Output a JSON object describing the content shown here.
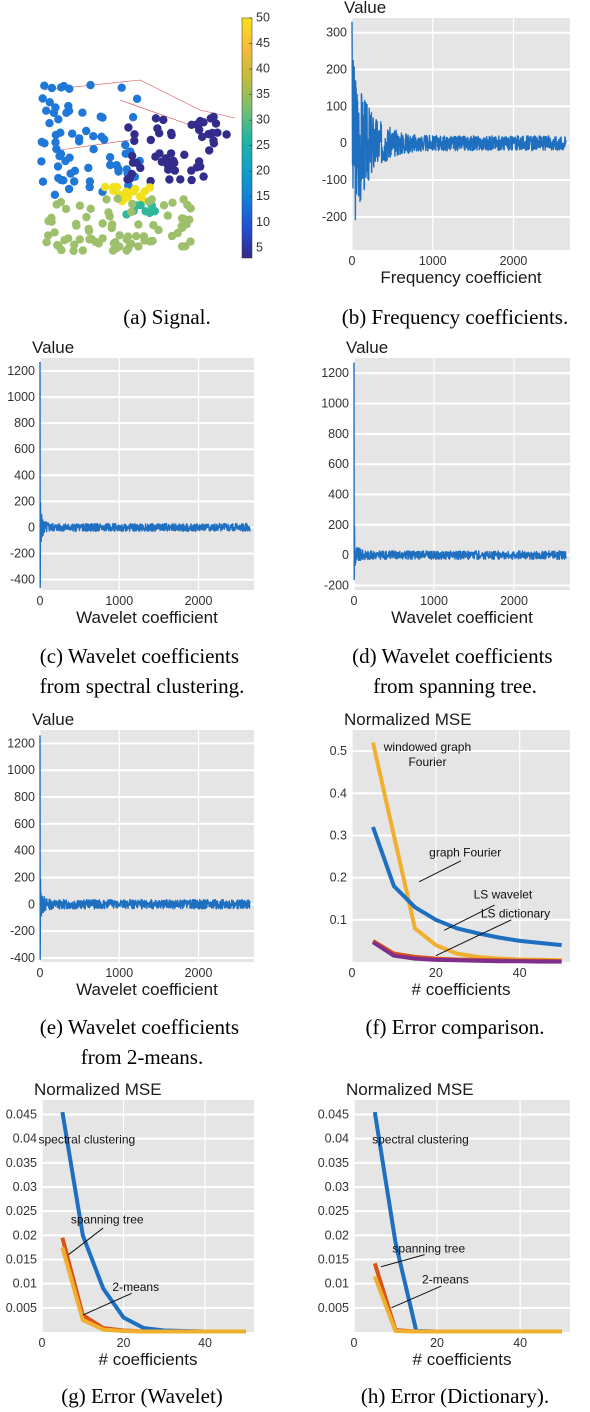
{
  "panels": [
    {
      "id": "a",
      "caption_lines": [
        "(a) Signal."
      ],
      "colorbar_ticks": [
        5,
        10,
        15,
        20,
        25,
        30,
        35,
        40,
        45,
        50
      ]
    },
    {
      "id": "b",
      "caption_lines": [
        "(b) Frequency coefficients."
      ]
    },
    {
      "id": "c",
      "caption_lines": [
        "(c) Wavelet coefficients",
        "from spectral clustering."
      ]
    },
    {
      "id": "d",
      "caption_lines": [
        "(d) Wavelet coefficients",
        "from spanning tree."
      ]
    },
    {
      "id": "e",
      "caption_lines": [
        "(e) Wavelet coefficients",
        "from 2-means."
      ]
    },
    {
      "id": "f",
      "caption_lines": [
        "(f) Error comparison."
      ]
    },
    {
      "id": "g",
      "caption_lines": [
        "(g) Error (Wavelet)"
      ]
    },
    {
      "id": "h",
      "caption_lines": [
        "(h) Error (Dictionary)."
      ]
    }
  ],
  "chart_data": [
    {
      "panel": "b",
      "type": "line",
      "title": "",
      "ylabel": "Value",
      "xlabel": "Frequency coefficient",
      "xlim": [
        0,
        2700
      ],
      "ylim": [
        -290,
        340
      ],
      "xticks": [
        0,
        1000,
        2000
      ],
      "yticks": [
        -200,
        -100,
        0,
        100,
        200,
        300
      ],
      "grid": true,
      "legend": "none",
      "series": [
        {
          "color": "#1f6fc0",
          "kind": "noise",
          "n": 2650,
          "decay": 200,
          "a0": 260,
          "a1": 20,
          "seed": 3
        }
      ]
    },
    {
      "panel": "c",
      "type": "line",
      "title": "",
      "ylabel": "Value",
      "xlabel": "Wavelet coefficient",
      "xlim": [
        0,
        2700
      ],
      "ylim": [
        -480,
        1300
      ],
      "xticks": [
        0,
        1000,
        2000
      ],
      "yticks": [
        -400,
        -200,
        0,
        200,
        400,
        600,
        800,
        1000,
        1200
      ],
      "grid": true,
      "legend": "none",
      "series": [
        {
          "color": "#1f6fc0",
          "kind": "wavelet",
          "n": 2650,
          "spike": 1270,
          "neg": -460,
          "a0": 150,
          "a1": 30,
          "seed": 5
        }
      ]
    },
    {
      "panel": "d",
      "type": "line",
      "title": "",
      "ylabel": "Value",
      "xlabel": "Wavelet coefficient",
      "xlim": [
        0,
        2700
      ],
      "ylim": [
        -230,
        1300
      ],
      "xticks": [
        0,
        1000,
        2000
      ],
      "yticks": [
        -200,
        0,
        200,
        400,
        600,
        800,
        1000,
        1200
      ],
      "grid": true,
      "legend": "none",
      "series": [
        {
          "color": "#1f6fc0",
          "kind": "wavelet",
          "n": 2650,
          "spike": 1270,
          "neg": -160,
          "a0": 120,
          "a1": 28,
          "seed": 9
        }
      ]
    },
    {
      "panel": "e",
      "type": "line",
      "title": "",
      "ylabel": "Value",
      "xlabel": "Wavelet coefficient",
      "xlim": [
        0,
        2700
      ],
      "ylim": [
        -430,
        1300
      ],
      "xticks": [
        0,
        1000,
        2000
      ],
      "yticks": [
        -400,
        -200,
        0,
        200,
        400,
        600,
        800,
        1000,
        1200
      ],
      "grid": true,
      "legend": "none",
      "series": [
        {
          "color": "#1f6fc0",
          "kind": "wavelet",
          "n": 2650,
          "spike": 1260,
          "neg": -410,
          "a0": 130,
          "a1": 35,
          "seed": 13
        }
      ]
    },
    {
      "panel": "f",
      "type": "line",
      "title": "",
      "ylabel": "Normalized MSE",
      "xlabel": "# coefficients",
      "xlim": [
        0,
        52
      ],
      "ylim": [
        0,
        0.55
      ],
      "xticks": [
        0,
        20,
        40
      ],
      "yticks": [
        0.1,
        0.2,
        0.3,
        0.4,
        0.5
      ],
      "grid": true,
      "legend": "none",
      "series": [
        {
          "color": "#f0b02f",
          "x": [
            5,
            10,
            15,
            20,
            25,
            30,
            35,
            40,
            45,
            50
          ],
          "y": [
            0.52,
            0.3,
            0.08,
            0.04,
            0.02,
            0.012,
            0.008,
            0.006,
            0.005,
            0.004
          ]
        },
        {
          "color": "#1f6fc0",
          "x": [
            5,
            10,
            15,
            20,
            25,
            30,
            35,
            40,
            45,
            50
          ],
          "y": [
            0.32,
            0.18,
            0.13,
            0.1,
            0.08,
            0.068,
            0.058,
            0.05,
            0.045,
            0.04
          ]
        },
        {
          "color": "#d95319",
          "x": [
            5,
            10,
            15,
            20,
            25,
            30,
            35,
            40,
            45,
            50
          ],
          "y": [
            0.05,
            0.02,
            0.012,
            0.008,
            0.006,
            0.005,
            0.004,
            0.003,
            0.003,
            0.002
          ]
        },
        {
          "color": "#7e2f8e",
          "x": [
            5,
            10,
            15,
            20,
            25,
            30,
            35,
            40,
            45,
            50
          ],
          "y": [
            0.047,
            0.015,
            0.008,
            0.005,
            0.004,
            0.003,
            0.002,
            0.002,
            0.001,
            0.001
          ]
        }
      ],
      "annotations": [
        {
          "text": [
            "windowed graph",
            "Fourier"
          ],
          "tx": 18,
          "ty": 0.5
        },
        {
          "text": [
            "graph Fourier"
          ],
          "tx": 27,
          "ty": 0.25,
          "arrow": [
            [
              26,
              0.24
            ],
            [
              16,
              0.19
            ]
          ]
        },
        {
          "text": [
            "LS wavelet"
          ],
          "tx": 36,
          "ty": 0.15,
          "arrow": [
            [
              34,
              0.135
            ],
            [
              22,
              0.075
            ]
          ]
        },
        {
          "text": [
            "LS dictionary"
          ],
          "tx": 39,
          "ty": 0.105,
          "arrow": [
            [
              38,
              0.1
            ],
            [
              20,
              0.015
            ]
          ]
        }
      ]
    },
    {
      "panel": "g",
      "type": "line",
      "title": "",
      "ylabel": "Normalized MSE",
      "xlabel": "# coefficients",
      "xlim": [
        0,
        52
      ],
      "ylim": [
        0,
        0.048
      ],
      "xticks": [
        0,
        20,
        40
      ],
      "yticks": [
        0.005,
        0.01,
        0.015,
        0.02,
        0.025,
        0.03,
        0.035,
        0.04,
        0.045
      ],
      "grid": true,
      "legend": "none",
      "series": [
        {
          "color": "#1f6fc0",
          "x": [
            5,
            10,
            15,
            20,
            25,
            30,
            35,
            40,
            45,
            50
          ],
          "y": [
            0.0455,
            0.02,
            0.009,
            0.003,
            0.0008,
            0.0003,
            0.0002,
            0.0001,
            0.0001,
            0.0001
          ]
        },
        {
          "color": "#d95319",
          "x": [
            5,
            10,
            15,
            20,
            25,
            30,
            35,
            40,
            45,
            50
          ],
          "y": [
            0.0195,
            0.0035,
            0.0008,
            0.0003,
            0.0001,
            0.0001,
            0.0001,
            0.0001,
            0.0001,
            0.0001
          ]
        },
        {
          "color": "#f0b02f",
          "x": [
            5,
            10,
            15,
            20,
            25,
            30,
            35,
            40,
            45,
            50
          ],
          "y": [
            0.0175,
            0.0025,
            0.0005,
            0.0002,
            0.0001,
            0.0001,
            0.0001,
            0.0001,
            0.0001,
            0.0001
          ]
        }
      ],
      "annotations": [
        {
          "text": [
            "spectral clustering"
          ],
          "tx": 11,
          "ty": 0.039
        },
        {
          "text": [
            "spanning tree"
          ],
          "tx": 16,
          "ty": 0.0225,
          "arrow": [
            [
              15,
              0.0215
            ],
            [
              6.5,
              0.016
            ]
          ]
        },
        {
          "text": [
            "2-means"
          ],
          "tx": 23,
          "ty": 0.0085,
          "arrow": [
            [
              22,
              0.008
            ],
            [
              10,
              0.0035
            ]
          ]
        }
      ]
    },
    {
      "panel": "h",
      "type": "line",
      "title": "",
      "ylabel": "Normalized MSE",
      "xlabel": "# coefficients",
      "xlim": [
        0,
        52
      ],
      "ylim": [
        0,
        0.048
      ],
      "xticks": [
        0,
        20,
        40
      ],
      "yticks": [
        0.005,
        0.01,
        0.015,
        0.02,
        0.025,
        0.03,
        0.035,
        0.04,
        0.045
      ],
      "grid": true,
      "legend": "none",
      "series": [
        {
          "color": "#1f6fc0",
          "x": [
            5,
            10,
            15,
            20,
            25,
            30,
            35,
            40,
            45,
            50
          ],
          "y": [
            0.0455,
            0.0185,
            0.0002,
            0.0001,
            0.0001,
            0.0001,
            0.0001,
            0.0001,
            0.0001,
            0.0001
          ]
        },
        {
          "color": "#d95319",
          "x": [
            5,
            10,
            15,
            20,
            25,
            30,
            35,
            40,
            45,
            50
          ],
          "y": [
            0.0142,
            0.0004,
            0.0001,
            0.0001,
            0.0001,
            0.0001,
            0.0001,
            0.0001,
            0.0001,
            0.0001
          ]
        },
        {
          "color": "#f0b02f",
          "x": [
            5,
            10,
            15,
            20,
            25,
            30,
            35,
            40,
            45,
            50
          ],
          "y": [
            0.0115,
            0.0002,
            0.0001,
            0.0001,
            0.0001,
            0.0001,
            0.0001,
            0.0001,
            0.0001,
            0.0001
          ]
        }
      ],
      "annotations": [
        {
          "text": [
            "spectral clustering"
          ],
          "tx": 16,
          "ty": 0.039
        },
        {
          "text": [
            "spanning tree"
          ],
          "tx": 18,
          "ty": 0.0165,
          "arrow": [
            [
              17,
              0.016
            ],
            [
              6.5,
              0.0135
            ]
          ]
        },
        {
          "text": [
            "2-means"
          ],
          "tx": 22,
          "ty": 0.01,
          "arrow": [
            [
              21,
              0.0095
            ],
            [
              9,
              0.005
            ]
          ]
        }
      ]
    }
  ]
}
